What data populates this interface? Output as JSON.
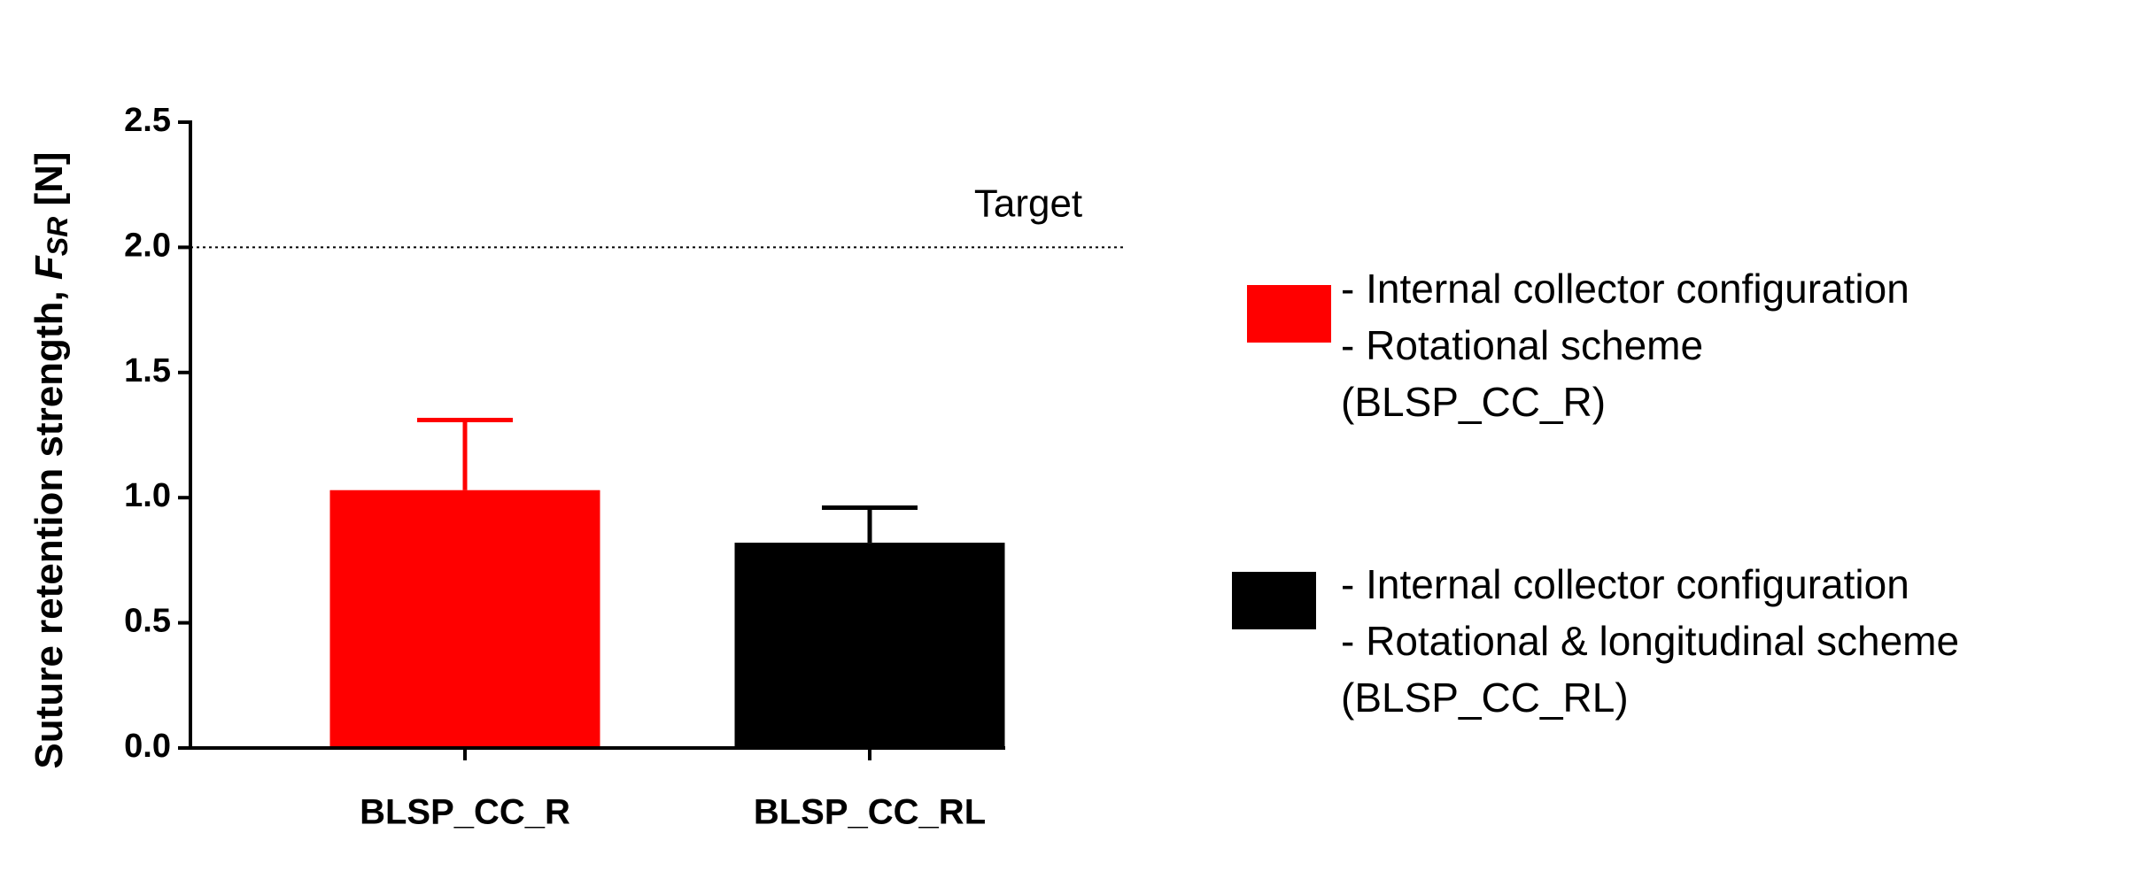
{
  "chart_data": {
    "type": "bar",
    "ylabel": "Suture retention strength, ",
    "ylabel_symbol": "F",
    "ylabel_subscript": "SR",
    "ylabel_unit": " [N]",
    "categories": [
      "BLSP_CC_R",
      "BLSP_CC_RL"
    ],
    "series": [
      {
        "name": [
          "- Internal collector configuration",
          "- Rotational scheme",
          "(BLSP_CC_R)"
        ],
        "color": "#ff0000",
        "values": [
          1.03,
          null
        ],
        "errors": [
          0.28,
          null
        ]
      },
      {
        "name": [
          "- Internal collector configuration",
          "- Rotational & longitudinal scheme",
          "(BLSP_CC_RL)"
        ],
        "color": "#000000",
        "values": [
          null,
          0.82
        ],
        "errors": [
          null,
          0.14
        ]
      }
    ],
    "ylim": [
      0,
      2.5
    ],
    "yticks": [
      {
        "value": 0,
        "label": "0.0"
      },
      {
        "value": 0.5,
        "label": "0.5"
      },
      {
        "value": 1,
        "label": "1.0"
      },
      {
        "value": 1.5,
        "label": "1.5"
      },
      {
        "value": 2,
        "label": "2.0"
      },
      {
        "value": 2.5,
        "label": "2.5"
      }
    ],
    "target": {
      "value": 2,
      "label": "Target"
    },
    "grid": false
  }
}
